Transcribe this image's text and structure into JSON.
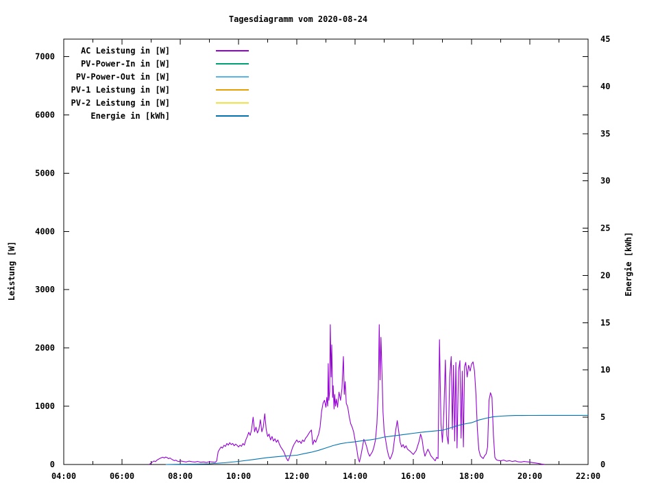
{
  "title": "Tagesdiagramm vom 2020-08-24",
  "chart_data": {
    "type": "line",
    "title": "Tagesdiagramm vom 2020-08-24",
    "grid": false,
    "legend_position": "top-left",
    "x_axis": {
      "range_hours": [
        4,
        22
      ],
      "major_ticks": [
        {
          "h": 4,
          "label": "04:00"
        },
        {
          "h": 6,
          "label": "06:00"
        },
        {
          "h": 8,
          "label": "08:00"
        },
        {
          "h": 10,
          "label": "10:00"
        },
        {
          "h": 12,
          "label": "12:00"
        },
        {
          "h": 14,
          "label": "14:00"
        },
        {
          "h": 16,
          "label": "16:00"
        },
        {
          "h": 18,
          "label": "18:00"
        },
        {
          "h": 20,
          "label": "20:00"
        },
        {
          "h": 22,
          "label": "22:00"
        }
      ],
      "minor_tick_hours": [
        5,
        7,
        9,
        11,
        13,
        15,
        17,
        19,
        21
      ]
    },
    "y1_axis": {
      "label": "Leistung [W]",
      "range": [
        0,
        7300
      ],
      "ticks": [
        0,
        1000,
        2000,
        3000,
        4000,
        5000,
        6000,
        7000
      ]
    },
    "y2_axis": {
      "label": "Energie [kWh]",
      "range": [
        0,
        45
      ],
      "ticks": [
        0,
        5,
        10,
        15,
        20,
        25,
        30,
        35,
        40,
        45
      ]
    },
    "series": [
      {
        "name": "AC Leistung in [W]",
        "color": "#9400d3",
        "axis": "y1",
        "points": [
          [
            6.93,
            0
          ],
          [
            7.0,
            25
          ],
          [
            7.05,
            45
          ],
          [
            7.1,
            60
          ],
          [
            7.15,
            50
          ],
          [
            7.2,
            75
          ],
          [
            7.25,
            90
          ],
          [
            7.3,
            105
          ],
          [
            7.35,
            115
          ],
          [
            7.4,
            125
          ],
          [
            7.45,
            112
          ],
          [
            7.5,
            128
          ],
          [
            7.55,
            118
          ],
          [
            7.6,
            100
          ],
          [
            7.65,
            112
          ],
          [
            7.7,
            92
          ],
          [
            7.75,
            78
          ],
          [
            7.8,
            66
          ],
          [
            7.85,
            74
          ],
          [
            7.9,
            58
          ],
          [
            7.95,
            52
          ],
          [
            8.0,
            62
          ],
          [
            8.1,
            52
          ],
          [
            8.2,
            44
          ],
          [
            8.3,
            58
          ],
          [
            8.4,
            48
          ],
          [
            8.5,
            42
          ],
          [
            8.6,
            52
          ],
          [
            8.7,
            38
          ],
          [
            8.8,
            44
          ],
          [
            8.9,
            34
          ],
          [
            9.0,
            48
          ],
          [
            9.1,
            42
          ],
          [
            9.2,
            38
          ],
          [
            9.25,
            60
          ],
          [
            9.3,
            220
          ],
          [
            9.35,
            262
          ],
          [
            9.4,
            300
          ],
          [
            9.45,
            282
          ],
          [
            9.5,
            330
          ],
          [
            9.55,
            310
          ],
          [
            9.6,
            360
          ],
          [
            9.65,
            332
          ],
          [
            9.7,
            375
          ],
          [
            9.75,
            342
          ],
          [
            9.8,
            362
          ],
          [
            9.85,
            322
          ],
          [
            9.9,
            350
          ],
          [
            9.95,
            330
          ],
          [
            10.0,
            302
          ],
          [
            10.05,
            332
          ],
          [
            10.1,
            312
          ],
          [
            10.15,
            360
          ],
          [
            10.2,
            332
          ],
          [
            10.25,
            420
          ],
          [
            10.3,
            480
          ],
          [
            10.35,
            552
          ],
          [
            10.4,
            500
          ],
          [
            10.45,
            602
          ],
          [
            10.5,
            812
          ],
          [
            10.55,
            562
          ],
          [
            10.6,
            640
          ],
          [
            10.65,
            542
          ],
          [
            10.7,
            602
          ],
          [
            10.75,
            768
          ],
          [
            10.8,
            562
          ],
          [
            10.85,
            640
          ],
          [
            10.9,
            870
          ],
          [
            10.95,
            600
          ],
          [
            11.0,
            482
          ],
          [
            11.05,
            522
          ],
          [
            11.1,
            422
          ],
          [
            11.15,
            482
          ],
          [
            11.2,
            402
          ],
          [
            11.25,
            442
          ],
          [
            11.3,
            382
          ],
          [
            11.35,
            422
          ],
          [
            11.4,
            352
          ],
          [
            11.45,
            302
          ],
          [
            11.5,
            262
          ],
          [
            11.55,
            222
          ],
          [
            11.6,
            162
          ],
          [
            11.65,
            102
          ],
          [
            11.7,
            62
          ],
          [
            11.75,
            122
          ],
          [
            11.8,
            202
          ],
          [
            11.85,
            282
          ],
          [
            11.9,
            342
          ],
          [
            11.95,
            382
          ],
          [
            12.0,
            422
          ],
          [
            12.05,
            382
          ],
          [
            12.1,
            402
          ],
          [
            12.15,
            362
          ],
          [
            12.2,
            422
          ],
          [
            12.25,
            392
          ],
          [
            12.3,
            452
          ],
          [
            12.35,
            482
          ],
          [
            12.4,
            522
          ],
          [
            12.45,
            562
          ],
          [
            12.5,
            592
          ],
          [
            12.55,
            342
          ],
          [
            12.6,
            422
          ],
          [
            12.65,
            382
          ],
          [
            12.7,
            452
          ],
          [
            12.75,
            522
          ],
          [
            12.8,
            642
          ],
          [
            12.85,
            902
          ],
          [
            12.9,
            1052
          ],
          [
            12.95,
            1102
          ],
          [
            13.0,
            982
          ],
          [
            13.03,
            1152
          ],
          [
            13.06,
            1002
          ],
          [
            13.08,
            1732
          ],
          [
            13.1,
            1102
          ],
          [
            13.13,
            1252
          ],
          [
            13.15,
            2400
          ],
          [
            13.18,
            1502
          ],
          [
            13.2,
            2052
          ],
          [
            13.23,
            1152
          ],
          [
            13.25,
            1352
          ],
          [
            13.28,
            952
          ],
          [
            13.3,
            1202
          ],
          [
            13.33,
            1002
          ],
          [
            13.36,
            1122
          ],
          [
            13.4,
            982
          ],
          [
            13.45,
            1242
          ],
          [
            13.5,
            1102
          ],
          [
            13.55,
            1302
          ],
          [
            13.6,
            1852
          ],
          [
            13.63,
            1202
          ],
          [
            13.66,
            1422
          ],
          [
            13.7,
            1052
          ],
          [
            13.75,
            982
          ],
          [
            13.8,
            822
          ],
          [
            13.85,
            702
          ],
          [
            13.9,
            642
          ],
          [
            13.95,
            562
          ],
          [
            14.0,
            422
          ],
          [
            14.05,
            302
          ],
          [
            14.1,
            122
          ],
          [
            14.15,
            42
          ],
          [
            14.2,
            152
          ],
          [
            14.25,
            282
          ],
          [
            14.3,
            432
          ],
          [
            14.35,
            382
          ],
          [
            14.4,
            302
          ],
          [
            14.45,
            202
          ],
          [
            14.5,
            142
          ],
          [
            14.55,
            182
          ],
          [
            14.6,
            222
          ],
          [
            14.65,
            302
          ],
          [
            14.7,
            422
          ],
          [
            14.75,
            702
          ],
          [
            14.8,
            1302
          ],
          [
            14.83,
            2400
          ],
          [
            14.86,
            1452
          ],
          [
            14.89,
            2182
          ],
          [
            14.93,
            1502
          ],
          [
            14.96,
            902
          ],
          [
            15.0,
            562
          ],
          [
            15.05,
            422
          ],
          [
            15.1,
            262
          ],
          [
            15.15,
            152
          ],
          [
            15.2,
            92
          ],
          [
            15.25,
            142
          ],
          [
            15.3,
            222
          ],
          [
            15.35,
            422
          ],
          [
            15.4,
            602
          ],
          [
            15.45,
            752
          ],
          [
            15.5,
            562
          ],
          [
            15.55,
            382
          ],
          [
            15.6,
            302
          ],
          [
            15.65,
            342
          ],
          [
            15.7,
            282
          ],
          [
            15.75,
            322
          ],
          [
            15.8,
            262
          ],
          [
            15.9,
            222
          ],
          [
            16.0,
            172
          ],
          [
            16.1,
            242
          ],
          [
            16.2,
            402
          ],
          [
            16.25,
            522
          ],
          [
            16.3,
            432
          ],
          [
            16.35,
            252
          ],
          [
            16.4,
            142
          ],
          [
            16.45,
            202
          ],
          [
            16.5,
            262
          ],
          [
            16.55,
            212
          ],
          [
            16.6,
            152
          ],
          [
            16.7,
            92
          ],
          [
            16.75,
            62
          ],
          [
            16.8,
            122
          ],
          [
            16.85,
            102
          ],
          [
            16.9,
            2142
          ],
          [
            16.95,
            702
          ],
          [
            17.0,
            382
          ],
          [
            17.05,
            902
          ],
          [
            17.1,
            1792
          ],
          [
            17.15,
            502
          ],
          [
            17.2,
            352
          ],
          [
            17.25,
            1502
          ],
          [
            17.3,
            1852
          ],
          [
            17.34,
            602
          ],
          [
            17.38,
            1702
          ],
          [
            17.42,
            402
          ],
          [
            17.46,
            1752
          ],
          [
            17.5,
            282
          ],
          [
            17.55,
            1602
          ],
          [
            17.6,
            1782
          ],
          [
            17.64,
            452
          ],
          [
            17.68,
            1602
          ],
          [
            17.72,
            302
          ],
          [
            17.76,
            1682
          ],
          [
            17.8,
            1752
          ],
          [
            17.85,
            1502
          ],
          [
            17.9,
            1702
          ],
          [
            17.95,
            1602
          ],
          [
            18.0,
            1722
          ],
          [
            18.05,
            1762
          ],
          [
            18.1,
            1602
          ],
          [
            18.15,
            1202
          ],
          [
            18.2,
            602
          ],
          [
            18.25,
            252
          ],
          [
            18.3,
            152
          ],
          [
            18.35,
            122
          ],
          [
            18.4,
            102
          ],
          [
            18.45,
            152
          ],
          [
            18.5,
            182
          ],
          [
            18.55,
            302
          ],
          [
            18.6,
            1102
          ],
          [
            18.65,
            1232
          ],
          [
            18.7,
            1152
          ],
          [
            18.75,
            502
          ],
          [
            18.8,
            122
          ],
          [
            18.85,
            82
          ],
          [
            18.9,
            72
          ],
          [
            19.0,
            62
          ],
          [
            19.1,
            76
          ],
          [
            19.2,
            56
          ],
          [
            19.3,
            66
          ],
          [
            19.4,
            52
          ],
          [
            19.5,
            62
          ],
          [
            19.6,
            46
          ],
          [
            19.7,
            42
          ],
          [
            19.8,
            52
          ],
          [
            19.9,
            46
          ],
          [
            20.0,
            40
          ],
          [
            20.1,
            32
          ],
          [
            20.2,
            26
          ],
          [
            20.3,
            16
          ],
          [
            20.4,
            8
          ],
          [
            20.5,
            2
          ]
        ]
      },
      {
        "name": "PV-Power-In in [W]",
        "color": "#009e73",
        "axis": "y1",
        "points": []
      },
      {
        "name": "PV-Power-Out in [W]",
        "color": "#56b4e9",
        "axis": "y1",
        "points": []
      },
      {
        "name": "PV-1 Leistung in [W]",
        "color": "#e69f00",
        "axis": "y1",
        "points": []
      },
      {
        "name": "PV-2 Leistung in [W]",
        "color": "#f0e442",
        "axis": "y1",
        "points": []
      },
      {
        "name": "Energie in [kWh]",
        "color": "#0072b2",
        "axis": "y2",
        "points": [
          [
            7.5,
            0
          ],
          [
            8.0,
            0.02
          ],
          [
            8.5,
            0.04
          ],
          [
            9.0,
            0.07
          ],
          [
            9.5,
            0.18
          ],
          [
            10.0,
            0.33
          ],
          [
            10.5,
            0.52
          ],
          [
            11.0,
            0.73
          ],
          [
            11.5,
            0.88
          ],
          [
            12.0,
            0.98
          ],
          [
            12.25,
            1.15
          ],
          [
            12.5,
            1.3
          ],
          [
            12.75,
            1.5
          ],
          [
            13.0,
            1.75
          ],
          [
            13.25,
            2.0
          ],
          [
            13.5,
            2.2
          ],
          [
            13.75,
            2.32
          ],
          [
            14.0,
            2.4
          ],
          [
            14.25,
            2.52
          ],
          [
            14.5,
            2.6
          ],
          [
            14.75,
            2.72
          ],
          [
            15.0,
            2.9
          ],
          [
            15.25,
            3.0
          ],
          [
            15.5,
            3.1
          ],
          [
            15.75,
            3.2
          ],
          [
            16.0,
            3.3
          ],
          [
            16.25,
            3.4
          ],
          [
            16.5,
            3.48
          ],
          [
            16.75,
            3.55
          ],
          [
            17.0,
            3.62
          ],
          [
            17.25,
            3.85
          ],
          [
            17.5,
            4.1
          ],
          [
            17.75,
            4.28
          ],
          [
            18.0,
            4.42
          ],
          [
            18.25,
            4.7
          ],
          [
            18.5,
            4.9
          ],
          [
            18.75,
            5.05
          ],
          [
            19.0,
            5.12
          ],
          [
            19.25,
            5.16
          ],
          [
            19.5,
            5.18
          ],
          [
            20.0,
            5.19
          ],
          [
            20.5,
            5.2
          ],
          [
            21.0,
            5.2
          ],
          [
            21.5,
            5.2
          ],
          [
            22.0,
            5.2
          ]
        ]
      }
    ]
  }
}
